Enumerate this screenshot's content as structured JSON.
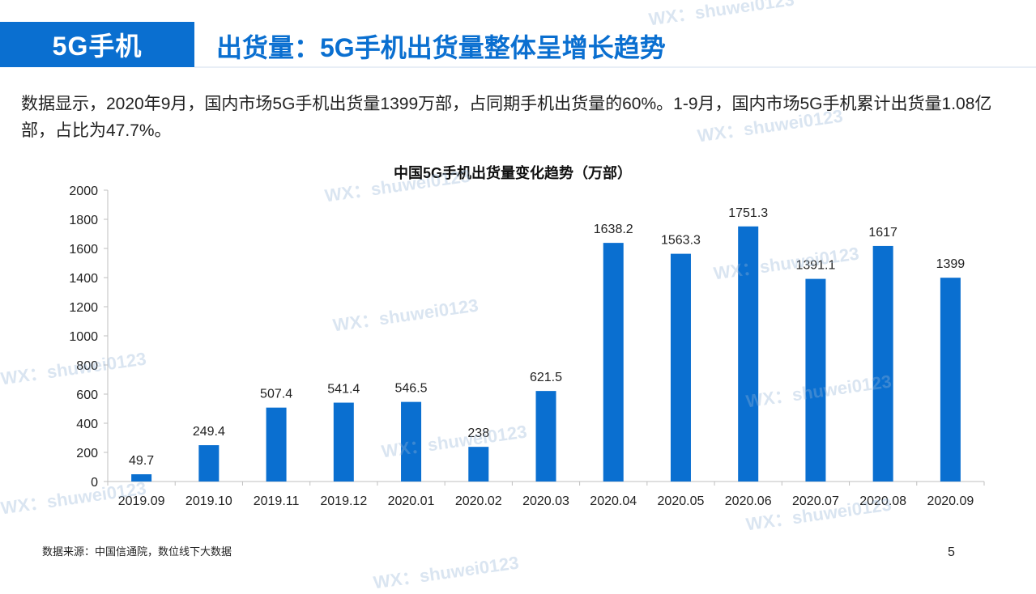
{
  "header": {
    "tag_label": "5G手机",
    "title": "出货量：5G手机出货量整体呈增长趋势"
  },
  "summary_text": "数据显示，2020年9月，国内市场5G手机出货量1399万部，占同期手机出货量的60%。1-9月，国内市场5G手机累计出货量1.08亿部，占比为47.7%。",
  "footer": {
    "source": "数据来源：中国信通院，数位线下大数据",
    "page_number": "5"
  },
  "watermark_text": "WX：shuwei0123",
  "colors": {
    "accent": "#0a6fd0",
    "bar": "#0a6fd0"
  },
  "chart_data": {
    "type": "bar",
    "title": "中国5G手机出货量变化趋势（万部）",
    "categories": [
      "2019.09",
      "2019.10",
      "2019.11",
      "2019.12",
      "2020.01",
      "2020.02",
      "2020.03",
      "2020.04",
      "2020.05",
      "2020.06",
      "2020.07",
      "2020.08",
      "2020.09"
    ],
    "values": [
      49.7,
      249.4,
      507.4,
      541.4,
      546.5,
      238,
      621.5,
      1638.2,
      1563.3,
      1751.3,
      1391.1,
      1617,
      1399
    ],
    "value_labels": [
      "49.7",
      "249.4",
      "507.4",
      "541.4",
      "546.5",
      "238",
      "621.5",
      "1638.2",
      "1563.3",
      "1751.3",
      "1391.1",
      "1617",
      "1399"
    ],
    "yticks": [
      "0",
      "200",
      "400",
      "600",
      "800",
      "1000",
      "1200",
      "1400",
      "1600",
      "1800",
      "2000"
    ],
    "ylim": [
      0,
      2000
    ],
    "grid": false,
    "legend": "none"
  }
}
